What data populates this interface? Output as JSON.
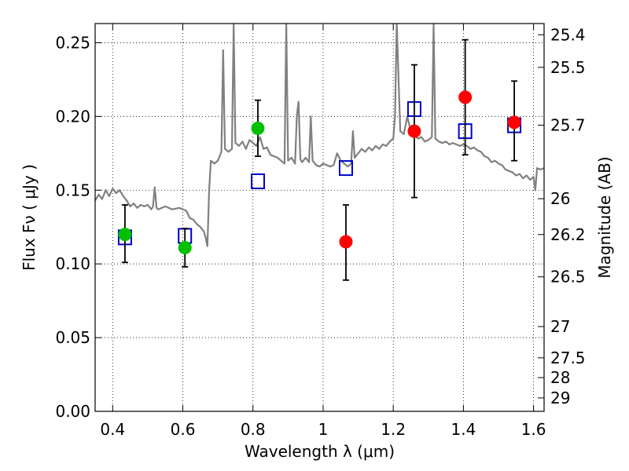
{
  "chart_data": {
    "type": "scatter",
    "title": "",
    "xlabel": "Wavelength  λ (μm)",
    "ylabel": "Flux  Fν  ( μJy )",
    "right_ylabel": "Magnitude (AB)",
    "xlim": [
      0.35,
      1.63
    ],
    "ylim": [
      0.0,
      0.263
    ],
    "grid": true,
    "x_ticks": [
      {
        "value": 0.4,
        "label": "0.4"
      },
      {
        "value": 0.6,
        "label": "0.6"
      },
      {
        "value": 0.8,
        "label": "0.8"
      },
      {
        "value": 1.0,
        "label": "1"
      },
      {
        "value": 1.2,
        "label": "1.2"
      },
      {
        "value": 1.4,
        "label": "1.4"
      },
      {
        "value": 1.6,
        "label": "1.6"
      }
    ],
    "y_ticks": [
      {
        "value": 0.0,
        "label": "0.00"
      },
      {
        "value": 0.05,
        "label": "0.05"
      },
      {
        "value": 0.1,
        "label": "0.10"
      },
      {
        "value": 0.15,
        "label": "0.15"
      },
      {
        "value": 0.2,
        "label": "0.20"
      },
      {
        "value": 0.25,
        "label": "0.25"
      }
    ],
    "right_ticks": [
      {
        "flux": 0.2554,
        "label": "25.4"
      },
      {
        "flux": 0.2333,
        "label": "25.5"
      },
      {
        "flux": 0.1941,
        "label": "25.7"
      },
      {
        "flux": 0.1442,
        "label": "26"
      },
      {
        "flux": 0.1199,
        "label": "26.2"
      },
      {
        "flux": 0.0912,
        "label": "26.5"
      },
      {
        "flux": 0.0575,
        "label": "27"
      },
      {
        "flux": 0.0363,
        "label": "27.5"
      },
      {
        "flux": 0.0229,
        "label": "28"
      },
      {
        "flux": 0.0091,
        "label": "29"
      }
    ],
    "series": [
      {
        "color": "#00c000",
        "marker": "circle",
        "points": [
          {
            "x": 0.435,
            "y": 0.12,
            "yerr_low": 0.101,
            "yerr_high": 0.14
          },
          {
            "x": 0.606,
            "y": 0.111,
            "yerr_low": 0.098,
            "yerr_high": 0.124
          },
          {
            "x": 0.814,
            "y": 0.192,
            "yerr_low": 0.173,
            "yerr_high": 0.211
          }
        ]
      },
      {
        "color": "#ff0000",
        "marker": "circle",
        "points": [
          {
            "x": 1.065,
            "y": 0.115,
            "yerr_low": 0.089,
            "yerr_high": 0.14
          },
          {
            "x": 1.26,
            "y": 0.19,
            "yerr_low": 0.145,
            "yerr_high": 0.235
          },
          {
            "x": 1.405,
            "y": 0.213,
            "yerr_low": 0.174,
            "yerr_high": 0.252
          },
          {
            "x": 1.545,
            "y": 0.196,
            "yerr_low": 0.17,
            "yerr_high": 0.224
          }
        ]
      },
      {
        "color": "#0000cc",
        "marker": "open-square",
        "points": [
          {
            "x": 0.435,
            "y": 0.118
          },
          {
            "x": 0.606,
            "y": 0.119
          },
          {
            "x": 0.814,
            "y": 0.156
          },
          {
            "x": 1.065,
            "y": 0.165
          },
          {
            "x": 1.26,
            "y": 0.205
          },
          {
            "x": 1.405,
            "y": 0.19
          },
          {
            "x": 1.545,
            "y": 0.194
          }
        ]
      },
      {
        "color": "#808080",
        "marker": "line",
        "points": [
          [
            0.35,
            0.143
          ],
          [
            0.36,
            0.147
          ],
          [
            0.37,
            0.144
          ],
          [
            0.38,
            0.15
          ],
          [
            0.39,
            0.146
          ],
          [
            0.4,
            0.151
          ],
          [
            0.41,
            0.148
          ],
          [
            0.42,
            0.15
          ],
          [
            0.43,
            0.146
          ],
          [
            0.44,
            0.143
          ],
          [
            0.45,
            0.139
          ],
          [
            0.46,
            0.141
          ],
          [
            0.47,
            0.138
          ],
          [
            0.48,
            0.14
          ],
          [
            0.49,
            0.139
          ],
          [
            0.5,
            0.14
          ],
          [
            0.51,
            0.137
          ],
          [
            0.515,
            0.139
          ],
          [
            0.52,
            0.152
          ],
          [
            0.525,
            0.138
          ],
          [
            0.53,
            0.137
          ],
          [
            0.55,
            0.139
          ],
          [
            0.57,
            0.137
          ],
          [
            0.59,
            0.138
          ],
          [
            0.61,
            0.136
          ],
          [
            0.62,
            0.131
          ],
          [
            0.63,
            0.13
          ],
          [
            0.64,
            0.127
          ],
          [
            0.65,
            0.125
          ],
          [
            0.66,
            0.122
          ],
          [
            0.665,
            0.118
          ],
          [
            0.67,
            0.112
          ],
          [
            0.675,
            0.15
          ],
          [
            0.68,
            0.17
          ],
          [
            0.69,
            0.168
          ],
          [
            0.7,
            0.17
          ],
          [
            0.71,
            0.176
          ],
          [
            0.715,
            0.245
          ],
          [
            0.72,
            0.178
          ],
          [
            0.73,
            0.176
          ],
          [
            0.74,
            0.178
          ],
          [
            0.745,
            0.263
          ],
          [
            0.75,
            0.182
          ],
          [
            0.76,
            0.18
          ],
          [
            0.77,
            0.183
          ],
          [
            0.78,
            0.178
          ],
          [
            0.79,
            0.184
          ],
          [
            0.8,
            0.182
          ],
          [
            0.81,
            0.18
          ],
          [
            0.82,
            0.186
          ],
          [
            0.83,
            0.178
          ],
          [
            0.84,
            0.179
          ],
          [
            0.85,
            0.174
          ],
          [
            0.86,
            0.173
          ],
          [
            0.87,
            0.172
          ],
          [
            0.88,
            0.17
          ],
          [
            0.89,
            0.168
          ],
          [
            0.895,
            0.263
          ],
          [
            0.9,
            0.17
          ],
          [
            0.91,
            0.172
          ],
          [
            0.92,
            0.168
          ],
          [
            0.925,
            0.2
          ],
          [
            0.93,
            0.21
          ],
          [
            0.935,
            0.171
          ],
          [
            0.94,
            0.169
          ],
          [
            0.95,
            0.172
          ],
          [
            0.96,
            0.169
          ],
          [
            0.965,
            0.2
          ],
          [
            0.97,
            0.17
          ],
          [
            0.98,
            0.167
          ],
          [
            0.99,
            0.166
          ],
          [
            1.0,
            0.168
          ],
          [
            1.01,
            0.167
          ],
          [
            1.02,
            0.166
          ],
          [
            1.03,
            0.167
          ],
          [
            1.04,
            0.175
          ],
          [
            1.05,
            0.17
          ],
          [
            1.06,
            0.168
          ],
          [
            1.07,
            0.166
          ],
          [
            1.08,
            0.168
          ],
          [
            1.085,
            0.19
          ],
          [
            1.09,
            0.172
          ],
          [
            1.1,
            0.175
          ],
          [
            1.11,
            0.178
          ],
          [
            1.12,
            0.176
          ],
          [
            1.13,
            0.179
          ],
          [
            1.14,
            0.177
          ],
          [
            1.15,
            0.18
          ],
          [
            1.16,
            0.178
          ],
          [
            1.17,
            0.181
          ],
          [
            1.18,
            0.18
          ],
          [
            1.19,
            0.183
          ],
          [
            1.2,
            0.185
          ],
          [
            1.205,
            0.2
          ],
          [
            1.21,
            0.263
          ],
          [
            1.22,
            0.19
          ],
          [
            1.23,
            0.188
          ],
          [
            1.24,
            0.2
          ],
          [
            1.25,
            0.19
          ],
          [
            1.26,
            0.188
          ],
          [
            1.27,
            0.185
          ],
          [
            1.28,
            0.186
          ],
          [
            1.29,
            0.183
          ],
          [
            1.3,
            0.184
          ],
          [
            1.31,
            0.186
          ],
          [
            1.315,
            0.263
          ],
          [
            1.32,
            0.185
          ],
          [
            1.33,
            0.183
          ],
          [
            1.34,
            0.182
          ],
          [
            1.35,
            0.183
          ],
          [
            1.36,
            0.181
          ],
          [
            1.37,
            0.182
          ],
          [
            1.38,
            0.181
          ],
          [
            1.39,
            0.18
          ],
          [
            1.4,
            0.181
          ],
          [
            1.41,
            0.18
          ],
          [
            1.42,
            0.178
          ],
          [
            1.43,
            0.179
          ],
          [
            1.44,
            0.177
          ],
          [
            1.45,
            0.176
          ],
          [
            1.46,
            0.173
          ],
          [
            1.47,
            0.172
          ],
          [
            1.48,
            0.169
          ],
          [
            1.49,
            0.17
          ],
          [
            1.5,
            0.168
          ],
          [
            1.51,
            0.167
          ],
          [
            1.52,
            0.164
          ],
          [
            1.53,
            0.163
          ],
          [
            1.54,
            0.162
          ],
          [
            1.55,
            0.16
          ],
          [
            1.56,
            0.161
          ],
          [
            1.57,
            0.158
          ],
          [
            1.58,
            0.16
          ],
          [
            1.59,
            0.157
          ],
          [
            1.6,
            0.159
          ],
          [
            1.605,
            0.15
          ],
          [
            1.61,
            0.165
          ],
          [
            1.62,
            0.164
          ],
          [
            1.63,
            0.165
          ]
        ]
      }
    ]
  }
}
